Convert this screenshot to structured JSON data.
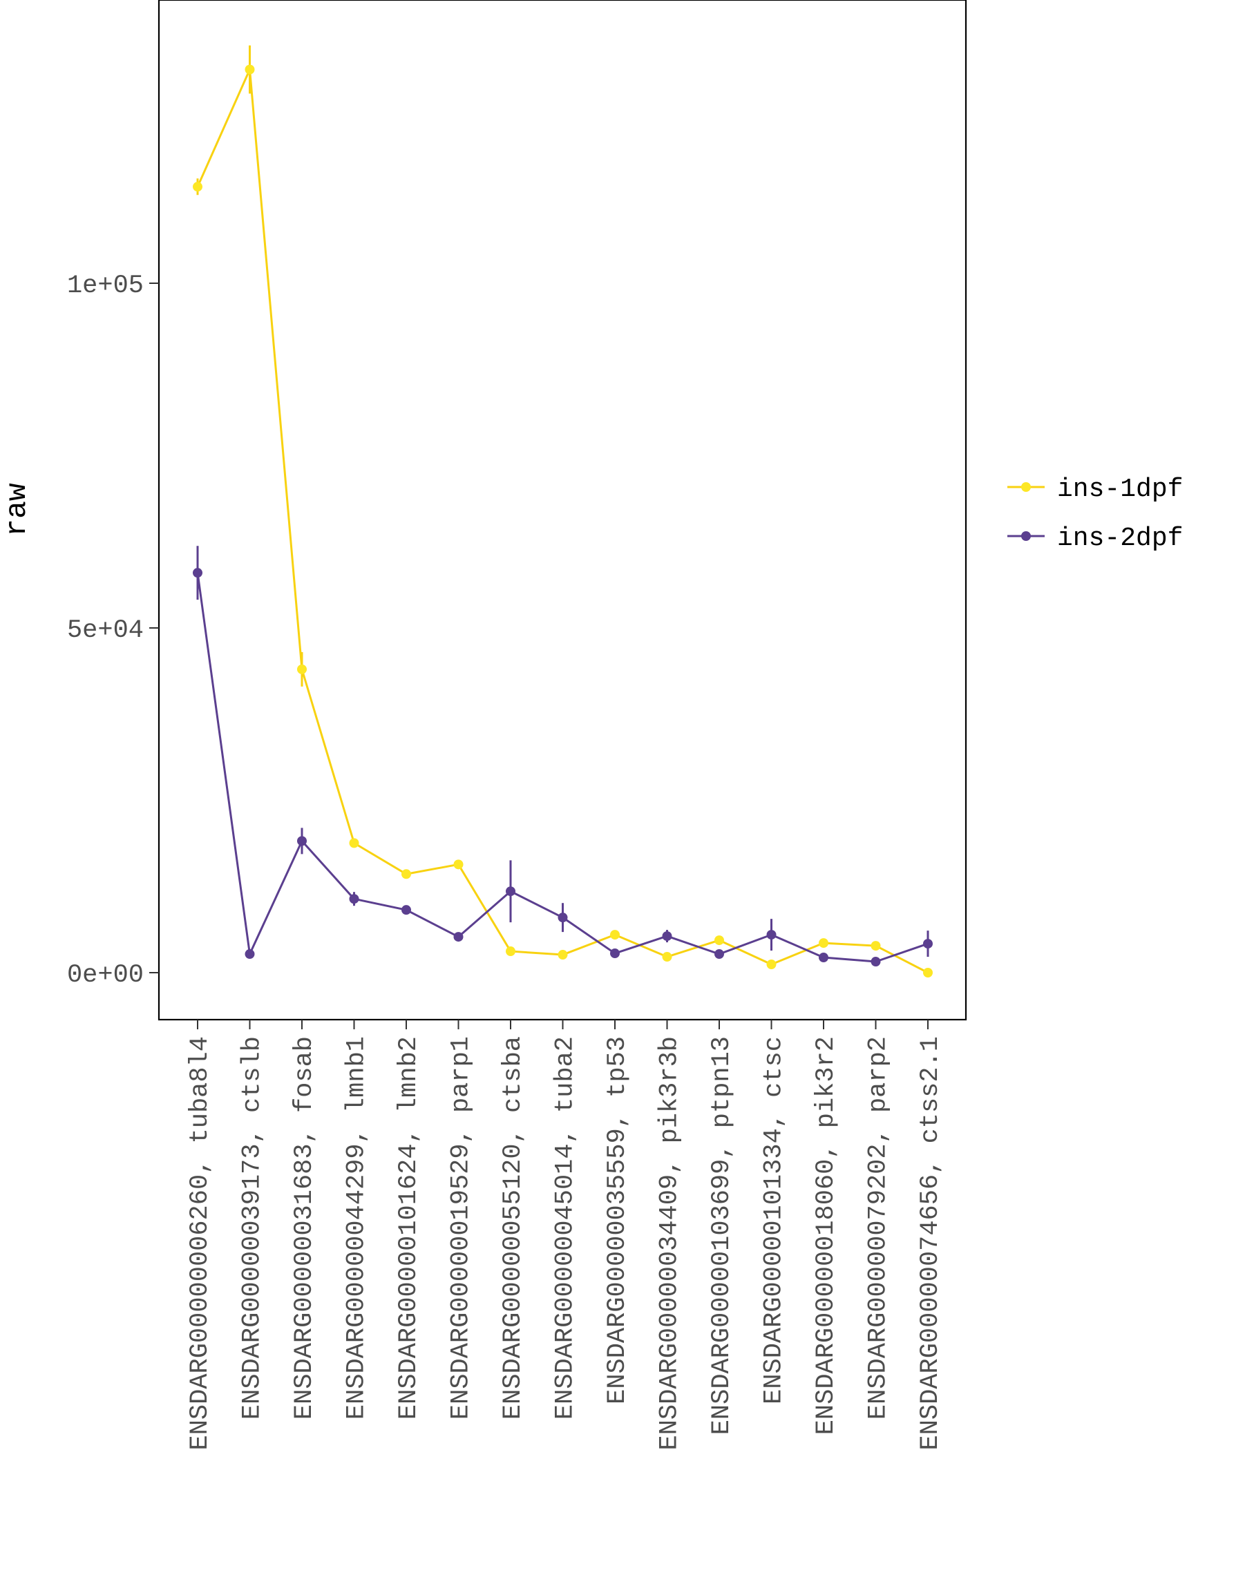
{
  "chart_data": {
    "type": "line",
    "title": "",
    "xlabel": "",
    "ylabel": "raw",
    "ylim": [
      -6600,
      140000
    ],
    "yticks": [
      {
        "value": 0,
        "label": "0e+00"
      },
      {
        "value": 50000,
        "label": "5e+04"
      },
      {
        "value": 100000,
        "label": "1e+05"
      }
    ],
    "grid": false,
    "legend_position": "right",
    "categories": [
      "ENSDARG00000006260, tuba8l4",
      "ENSDARG00000039173, ctslb",
      "ENSDARG00000031683, fosab",
      "ENSDARG00000044299, lmnb1",
      "ENSDARG00000101624, lmnb2",
      "ENSDARG00000019529, parp1",
      "ENSDARG00000055120, ctsba",
      "ENSDARG00000045014, tuba2",
      "ENSDARG00000035559, tp53",
      "ENSDARG00000034409, pik3r3b",
      "ENSDARG00000103699, ptpn13",
      "ENSDARG00000101334, ctsc",
      "ENSDARG00000018060, pik3r2",
      "ENSDARG00000079202, parp2",
      "ENSDARG00000074656, ctss2.1"
    ],
    "series": [
      {
        "name": "ins-1dpf",
        "color": "#FDE725",
        "line_color": "#F8D211",
        "values": [
          114000,
          131000,
          44000,
          18800,
          14300,
          15700,
          3100,
          2600,
          5500,
          2300,
          4700,
          1200,
          4300,
          3900,
          0
        ],
        "err": [
          1200,
          3500,
          2500,
          0,
          0,
          0,
          0,
          0,
          0,
          0,
          0,
          0,
          0,
          0,
          0
        ]
      },
      {
        "name": "ins-2dpf",
        "color": "#5B3F8F",
        "line_color": "#5B3F8F",
        "values": [
          58000,
          2700,
          19100,
          10700,
          9100,
          5200,
          11800,
          8000,
          2800,
          5300,
          2700,
          5500,
          2200,
          1600,
          4200
        ],
        "err": [
          3900,
          0,
          1900,
          1000,
          0,
          0,
          4500,
          2100,
          0,
          900,
          0,
          2300,
          0,
          0,
          1900
        ]
      }
    ]
  }
}
